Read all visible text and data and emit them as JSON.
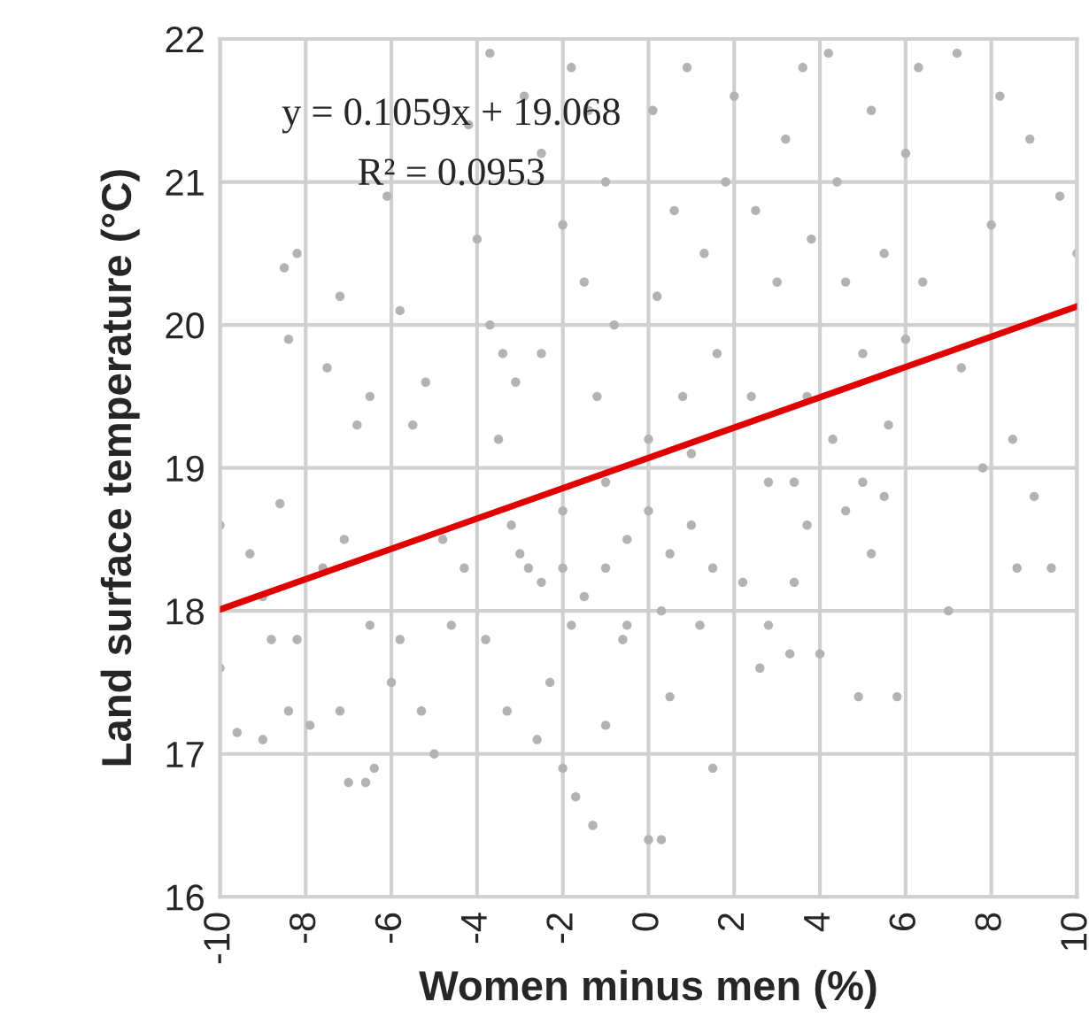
{
  "chart_data": {
    "type": "scatter",
    "xlabel": "Women minus men (%)",
    "ylabel": "Land surface temperature (°C)",
    "annotations": [
      "y = 0.1059x + 19.068",
      "R² = 0.0953"
    ],
    "xlim": [
      -10,
      10
    ],
    "xticks": [
      -10,
      -8,
      -6,
      -4,
      -2,
      0,
      2,
      4,
      6,
      8,
      10
    ],
    "ylim": [
      16,
      22
    ],
    "yticks": [
      16,
      17,
      18,
      19,
      20,
      21,
      22
    ],
    "grid": true,
    "marker": "circle",
    "series": [
      {
        "color": "#b3b3b3",
        "x": [
          -10,
          -10,
          -9.6,
          -9,
          -9.3,
          -8.6,
          -8.8,
          -8.4,
          -8.2,
          -7.9,
          -8.5,
          -8.2,
          -8.4,
          -9,
          -7.6,
          -7.2,
          -7,
          -6.6,
          -6.4,
          -6,
          -6.5,
          -7.1,
          -6.8,
          -7.5,
          -7.2,
          -6.5,
          -6.1,
          -5.8,
          -5.5,
          -5.2,
          -5.8,
          -5.3,
          -5,
          -4.6,
          -4.3,
          -4.8,
          -4,
          -3.7,
          -3.4,
          -3.1,
          -3.5,
          -2.8,
          -3.2,
          -3.8,
          -3.3,
          -2.6,
          -2.3,
          -2,
          -1.7,
          -1.3,
          -1,
          -0.5,
          -4.2,
          -3.7,
          -2.9,
          -2.5,
          -1.8,
          -1.4,
          -1,
          -2,
          -1.5,
          -2.5,
          -1.2,
          -0.8,
          -3,
          -2.5,
          -2,
          -1.5,
          -1,
          -0.5,
          0,
          0.5,
          1,
          1.5,
          -2,
          -1,
          0,
          1,
          0.3,
          -0.6,
          1.2,
          -1.8,
          0.8,
          1.6,
          0.2,
          0.6,
          1.3,
          1.8,
          0.1,
          0.9,
          2,
          0.5,
          0,
          0.3,
          1.5,
          2.6,
          2.2,
          2.8,
          2.4,
          3,
          2.5,
          3.2,
          3.6,
          4.2,
          4.4,
          3.8,
          4.6,
          5,
          4.3,
          3.7,
          3.4,
          4,
          3.3,
          2.8,
          5,
          5.6,
          5.5,
          5.2,
          6.3,
          6,
          7.2,
          8.2,
          8.9,
          9.6,
          10,
          8,
          6.4,
          6,
          7.3,
          7.8,
          8.5,
          9,
          7,
          5.2,
          4.9,
          5.8,
          5.5,
          4.6,
          3.4,
          3.7,
          8.6,
          9.4
        ],
        "values": [
          18.6,
          17.6,
          17.15,
          17.1,
          18.4,
          18.75,
          17.8,
          17.3,
          17.8,
          17.2,
          20.4,
          20.5,
          19.9,
          18.1,
          18.3,
          17.3,
          16.8,
          16.8,
          16.9,
          17.5,
          17.9,
          18.5,
          19.3,
          19.7,
          20.2,
          19.5,
          20.9,
          20.1,
          19.3,
          19.6,
          17.8,
          17.3,
          17,
          17.9,
          18.3,
          18.5,
          20.6,
          20,
          19.8,
          19.6,
          19.2,
          18.3,
          18.6,
          17.8,
          17.3,
          17.1,
          17.5,
          16.9,
          16.7,
          16.5,
          17.2,
          17.9,
          21.4,
          21.9,
          21.6,
          21.2,
          21.8,
          21.5,
          21,
          20.7,
          20.3,
          19.8,
          19.5,
          20,
          18.4,
          18.2,
          18.3,
          18.1,
          18.3,
          18.5,
          18.7,
          18.4,
          18.6,
          18.3,
          18.7,
          18.9,
          19.2,
          19.1,
          18,
          17.8,
          17.9,
          17.9,
          19.5,
          19.8,
          20.2,
          20.8,
          20.5,
          21,
          21.5,
          21.8,
          21.6,
          17.4,
          16.4,
          16.4,
          16.9,
          17.6,
          18.2,
          18.9,
          19.5,
          20.3,
          20.8,
          21.3,
          21.8,
          21.9,
          21,
          20.6,
          20.3,
          19.8,
          19.2,
          18.6,
          18.2,
          17.7,
          17.7,
          17.9,
          18.9,
          19.3,
          20.5,
          21.5,
          21.8,
          21.2,
          21.9,
          21.6,
          21.3,
          20.9,
          20.5,
          20.7,
          20.3,
          19.9,
          19.7,
          19,
          19.2,
          18.8,
          18,
          18.4,
          17.4,
          17.4,
          18.8,
          18.7,
          18.9,
          19.5,
          18.3,
          18.3
        ]
      },
      {
        "type": "line",
        "color": "#e00000",
        "x": [
          -10,
          10
        ],
        "values": [
          18.01,
          20.13
        ],
        "marker": "none"
      }
    ]
  }
}
